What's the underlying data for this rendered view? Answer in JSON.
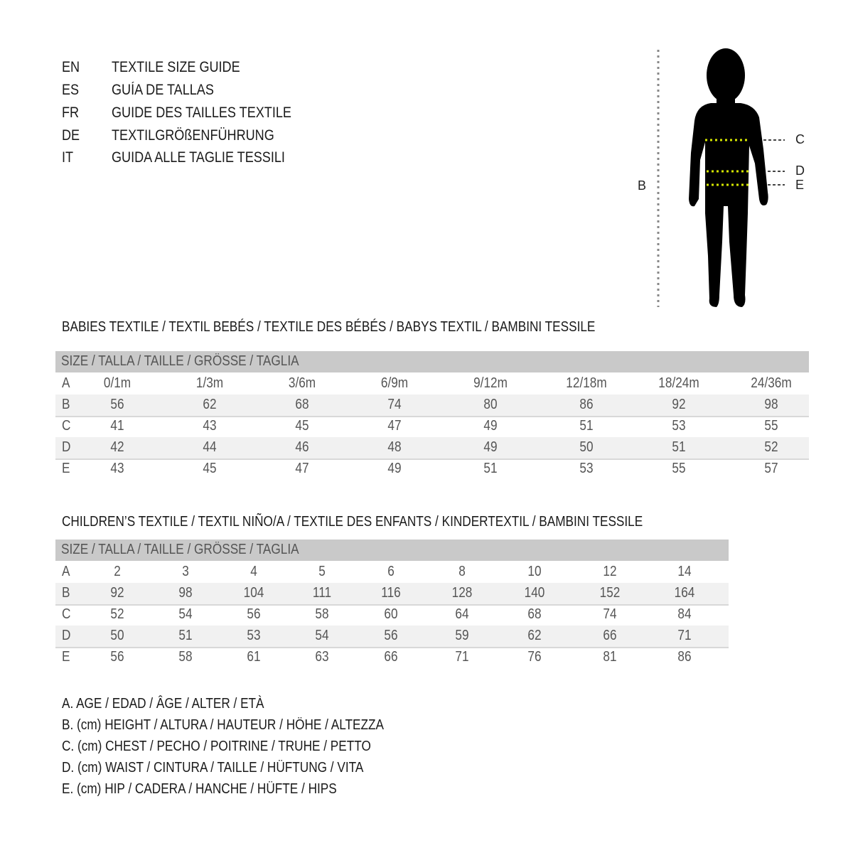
{
  "title_block": [
    {
      "code": "EN",
      "text": "TEXTILE SIZE GUIDE"
    },
    {
      "code": "ES",
      "text": "GUÍA DE TALLAS"
    },
    {
      "code": "FR",
      "text": "GUIDE DES TAILLES TEXTILE"
    },
    {
      "code": "DE",
      "text": "TEXTILGRÖßENFÜHRUNG"
    },
    {
      "code": "IT",
      "text": "GUIDA ALLE TAGLIE TESSILI"
    }
  ],
  "figure": {
    "labels": {
      "height": "B",
      "chest": "C",
      "waist": "D",
      "hip": "E"
    },
    "measure_line_color": "#d4e600"
  },
  "babies": {
    "heading": "BABIES TEXTILE / TEXTIL BEBÉS / TEXTILE DES BÉBÉS / BABYS TEXTIL  / BAMBINI TESSILE",
    "size_header": "SIZE / TALLA / TAILLE / GRÖSSE / TAGLIA",
    "rows": [
      {
        "label": "A",
        "values": [
          "0/1m",
          "1/3m",
          "3/6m",
          "6/9m",
          "9/12m",
          "12/18m",
          "18/24m",
          "24/36m"
        ]
      },
      {
        "label": "B",
        "values": [
          "56",
          "62",
          "68",
          "74",
          "80",
          "86",
          "92",
          "98"
        ]
      },
      {
        "label": "C",
        "values": [
          "41",
          "43",
          "45",
          "47",
          "49",
          "51",
          "53",
          "55"
        ]
      },
      {
        "label": "D",
        "values": [
          "42",
          "44",
          "46",
          "48",
          "49",
          "50",
          "51",
          "52"
        ]
      },
      {
        "label": "E",
        "values": [
          "43",
          "45",
          "47",
          "49",
          "51",
          "53",
          "55",
          "57"
        ]
      }
    ]
  },
  "children": {
    "heading": "CHILDREN’S TEXTILE / TEXTIL NIÑO/A / TEXTILE DES ENFANTS / KINDERTEXTIL / BAMBINI TESSILE",
    "size_header": "SIZE / TALLA / TAILLE / GRÖSSE / TAGLIA",
    "rows": [
      {
        "label": "A",
        "values": [
          "2",
          "3",
          "4",
          "5",
          "6",
          "8",
          "10",
          "12",
          "14"
        ]
      },
      {
        "label": "B",
        "values": [
          "92",
          "98",
          "104",
          "111",
          "116",
          "128",
          "140",
          "152",
          "164"
        ]
      },
      {
        "label": "C",
        "values": [
          "52",
          "54",
          "56",
          "58",
          "60",
          "64",
          "68",
          "74",
          "84"
        ]
      },
      {
        "label": "D",
        "values": [
          "50",
          "51",
          "53",
          "54",
          "56",
          "59",
          "62",
          "66",
          "71"
        ]
      },
      {
        "label": "E",
        "values": [
          "56",
          "58",
          "61",
          "63",
          "66",
          "71",
          "76",
          "81",
          "86"
        ]
      }
    ]
  },
  "legend": [
    "A. AGE / EDAD / ÂGE / ALTER / ETÀ",
    "B. (cm) HEIGHT / ALTURA / HAUTEUR / HÖHE / ALTEZZA",
    "C. (cm) CHEST / PECHO / POITRINE / TRUHE / PETTO",
    "D. (cm) WAIST / CINTURA / TAILLE / HÜFTUNG / VITA",
    "E. (cm) HIP / CADERA / HANCHE / HÜFTE / HIPS"
  ]
}
